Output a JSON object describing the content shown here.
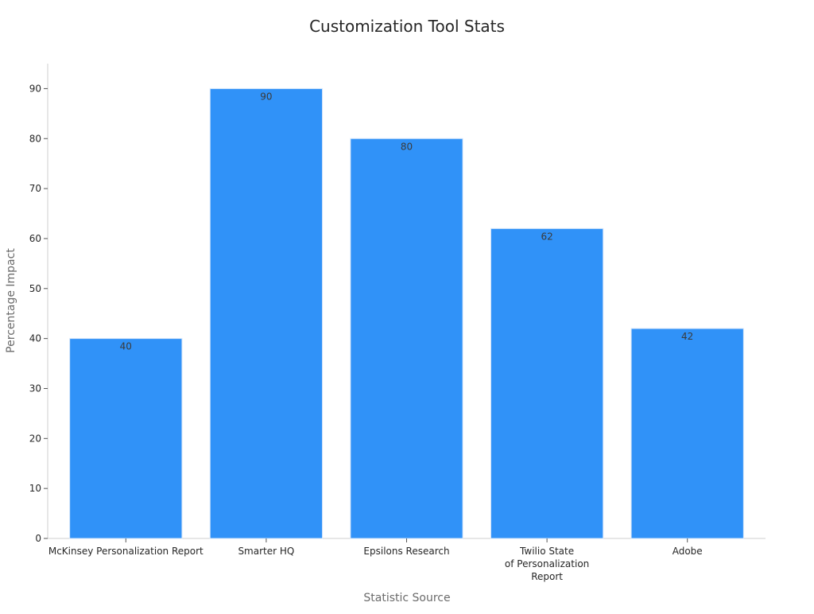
{
  "chart_data": {
    "type": "bar",
    "title": "Customization Tool Stats",
    "xlabel": "Statistic Source",
    "ylabel": "Percentage Impact",
    "categories": [
      [
        "McKinsey Personalization Report"
      ],
      [
        "Smarter HQ"
      ],
      [
        "Epsilons Research"
      ],
      [
        "Twilio State",
        "of Personalization",
        "Report"
      ],
      [
        "Adobe"
      ]
    ],
    "values": [
      40,
      90,
      80,
      62,
      42
    ],
    "data_labels": [
      "40",
      "90",
      "80",
      "62",
      "42"
    ],
    "ylim": [
      0,
      95
    ],
    "yticks": [
      0,
      10,
      20,
      30,
      40,
      50,
      60,
      70,
      80,
      90
    ],
    "grid": false,
    "legend": "none",
    "colors": {
      "bar": "#3092f8"
    }
  }
}
